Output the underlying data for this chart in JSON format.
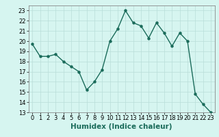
{
  "x": [
    0,
    1,
    2,
    3,
    4,
    5,
    6,
    7,
    8,
    9,
    10,
    11,
    12,
    13,
    14,
    15,
    16,
    17,
    18,
    19,
    20,
    21,
    22,
    23
  ],
  "y": [
    19.7,
    18.5,
    18.5,
    18.7,
    18.0,
    17.5,
    17.0,
    15.2,
    16.0,
    17.2,
    20.0,
    21.2,
    23.0,
    21.8,
    21.5,
    20.3,
    21.8,
    20.8,
    19.5,
    20.8,
    20.0,
    14.8,
    13.8,
    13.0
  ],
  "xlabel": "Humidex (Indice chaleur)",
  "ylim": [
    13,
    23.5
  ],
  "xlim": [
    -0.5,
    23.5
  ],
  "yticks": [
    13,
    14,
    15,
    16,
    17,
    18,
    19,
    20,
    21,
    22,
    23
  ],
  "xticks": [
    0,
    1,
    2,
    3,
    4,
    5,
    6,
    7,
    8,
    9,
    10,
    11,
    12,
    13,
    14,
    15,
    16,
    17,
    18,
    19,
    20,
    21,
    22,
    23
  ],
  "line_color": "#1a6b5a",
  "marker_color": "#1a6b5a",
  "bg_color": "#d6f5f0",
  "grid_color": "#b8ddd8",
  "xlabel_fontsize": 7.5,
  "tick_fontsize": 6.0,
  "linewidth": 1.0,
  "markersize": 2.2
}
